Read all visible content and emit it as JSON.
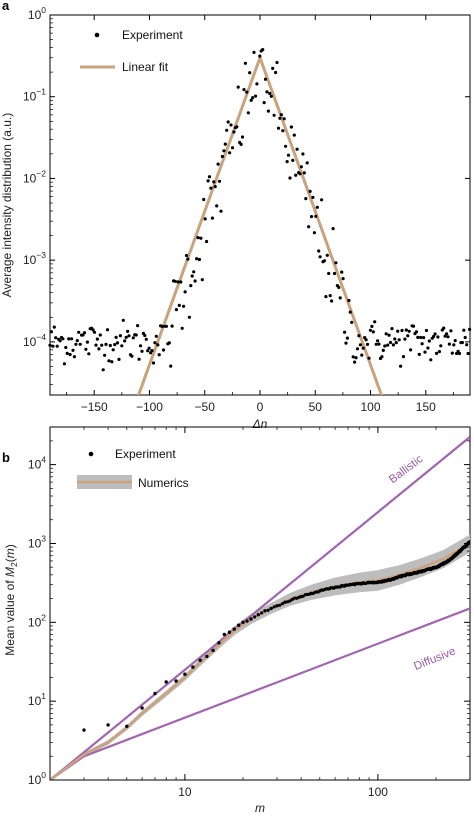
{
  "chart_data": [
    {
      "type": "scatter",
      "panel_label": "a",
      "xlabel": "Δn",
      "ylabel": "Average intensity distribution (a.u.)",
      "xlim": [
        -190,
        190
      ],
      "ylim": [
        2e-05,
        1
      ],
      "yscale": "log",
      "x_ticks": [
        -150,
        -100,
        -50,
        0,
        50,
        100,
        150
      ],
      "x_tick_labels": [
        "−150",
        "−100",
        "−50",
        "0",
        "50",
        "100",
        "150"
      ],
      "y_ticks": [
        {
          "base": "10",
          "exp": "0",
          "value": 1
        },
        {
          "base": "10",
          "exp": "−1",
          "value": 0.1
        },
        {
          "base": "10",
          "exp": "−2",
          "value": 0.01
        },
        {
          "base": "10",
          "exp": "−3",
          "value": 0.001
        },
        {
          "base": "10",
          "exp": "−4",
          "value": 0.0001
        }
      ],
      "legend": {
        "position": "top-left",
        "entries": [
          "Experiment",
          "Linear fit"
        ]
      },
      "series": [
        {
          "name": "Experiment",
          "kind": "points",
          "color": "#000000",
          "model": "max(0.28*exp(-0.093*|x|), ~0.0001 noise floor)",
          "x_range": [
            -190,
            190
          ],
          "step": 1.3
        },
        {
          "name": "Linear fit",
          "kind": "line",
          "color": "#c9a27e",
          "points": [
            [
              -110,
              2.2e-05
            ],
            [
              0,
              0.3
            ],
            [
              110,
              2.2e-05
            ]
          ]
        }
      ]
    },
    {
      "type": "line",
      "panel_label": "b",
      "xlabel": "m",
      "ylabel_parts": [
        "Mean value of ",
        "M",
        "2",
        "(",
        "m",
        ")"
      ],
      "xscale": "log",
      "yscale": "log",
      "xlim": [
        2,
        300
      ],
      "ylim": [
        1,
        30000
      ],
      "x_ticks": [
        {
          "label": "10",
          "value": 10
        },
        {
          "label": "100",
          "value": 100
        }
      ],
      "y_ticks": [
        {
          "base": "10",
          "exp": "0",
          "value": 1
        },
        {
          "base": "10",
          "exp": "1",
          "value": 10
        },
        {
          "base": "10",
          "exp": "2",
          "value": 100
        },
        {
          "base": "10",
          "exp": "3",
          "value": 1000
        },
        {
          "base": "10",
          "exp": "4",
          "value": 10000
        }
      ],
      "legend": {
        "position": "top-left",
        "entries": [
          "Experiment",
          "Numerics"
        ]
      },
      "annotations": [
        {
          "text": "Ballistic",
          "color": "#9b59a6"
        },
        {
          "text": "Diffusive",
          "color": "#9b59a6"
        }
      ],
      "series": [
        {
          "name": "Ballistic",
          "color": "#a066b0",
          "points": [
            [
              2,
              1
            ],
            [
              300,
              22500
            ]
          ]
        },
        {
          "name": "Diffusive",
          "color": "#a066b0",
          "points": [
            [
              2,
              1
            ],
            [
              3,
              2
            ],
            [
              300,
              150
            ]
          ]
        },
        {
          "name": "Numerics",
          "color": "#c9a27e",
          "band_color": "#bdbdbd",
          "points": [
            [
              2,
              1
            ],
            [
              3,
              2.1
            ],
            [
              4,
              3
            ],
            [
              5,
              4.6
            ],
            [
              6,
              7
            ],
            [
              8,
              12.5
            ],
            [
              10,
              20
            ],
            [
              12,
              31
            ],
            [
              15,
              52
            ],
            [
              18,
              78
            ],
            [
              22,
              110
            ],
            [
              28,
              150
            ],
            [
              35,
              195
            ],
            [
              45,
              240
            ],
            [
              60,
              285
            ],
            [
              80,
              320
            ],
            [
              100,
              340
            ],
            [
              130,
              400
            ],
            [
              170,
              500
            ],
            [
              220,
              640
            ],
            [
              300,
              1000
            ]
          ],
          "band_rel": [
            [
              2,
              0.05
            ],
            [
              10,
              0.1
            ],
            [
              30,
              0.18
            ],
            [
              60,
              0.3
            ],
            [
              100,
              0.35
            ],
            [
              200,
              0.3
            ],
            [
              300,
              0.3
            ]
          ]
        },
        {
          "name": "Experiment",
          "color": "#000000",
          "points": [
            [
              3,
              4.3
            ],
            [
              4,
              5
            ],
            [
              5,
              4.8
            ],
            [
              6,
              8.2
            ],
            [
              7,
              12.5
            ],
            [
              8,
              17.5
            ],
            [
              9,
              18
            ],
            [
              10,
              22
            ],
            [
              11,
              27
            ],
            [
              12,
              33
            ],
            [
              13,
              37
            ],
            [
              14,
              44
            ],
            [
              15,
              55
            ],
            [
              16,
              70
            ],
            [
              17,
              75
            ],
            [
              18,
              82
            ],
            [
              19,
              92
            ],
            [
              20,
              100
            ],
            [
              22,
              110
            ],
            [
              24,
              125
            ],
            [
              26,
              140
            ],
            [
              28,
              150
            ],
            [
              30,
              162
            ],
            [
              33,
              180
            ],
            [
              36,
              195
            ],
            [
              40,
              212
            ],
            [
              45,
              232
            ],
            [
              50,
              250
            ],
            [
              55,
              265
            ],
            [
              60,
              278
            ],
            [
              66,
              290
            ],
            [
              72,
              300
            ],
            [
              80,
              310
            ],
            [
              90,
              318
            ],
            [
              100,
              325
            ],
            [
              110,
              335
            ],
            [
              120,
              355
            ],
            [
              130,
              380
            ],
            [
              140,
              400
            ],
            [
              150,
              415
            ],
            [
              160,
              430
            ],
            [
              175,
              455
            ],
            [
              190,
              480
            ],
            [
              205,
              510
            ],
            [
              220,
              560
            ],
            [
              240,
              640
            ],
            [
              260,
              760
            ],
            [
              280,
              900
            ],
            [
              300,
              1050
            ]
          ]
        }
      ]
    }
  ]
}
